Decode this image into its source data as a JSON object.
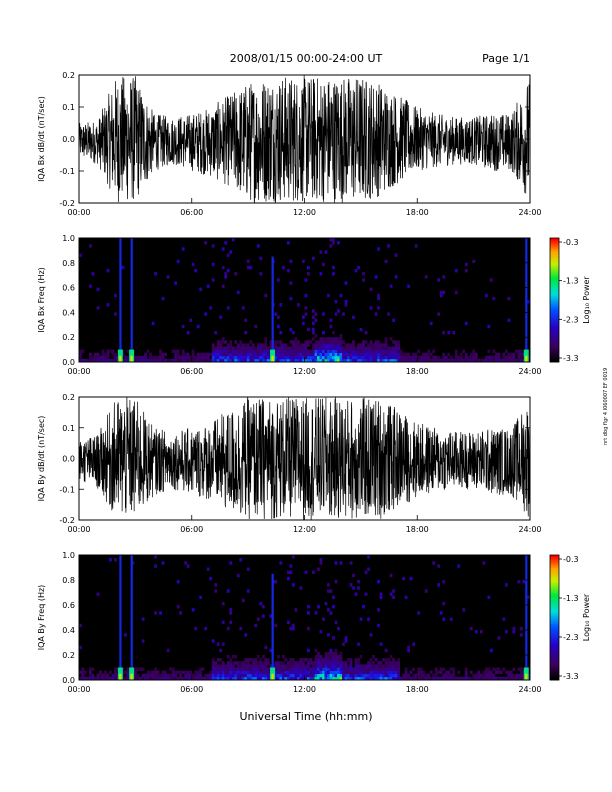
{
  "header": {
    "title": "2008/01/15  00:00-24:00 UT",
    "page": "Page 1/1"
  },
  "footer": {
    "xlabel": "Universal Time (hh:mm)"
  },
  "side_note": "nrt dbg flgr 4 I060007 EF 0019",
  "chart_data": [
    {
      "type": "line",
      "ylabel": "IQA Bx dB/dt (nT/sec)",
      "ylim": [
        -0.2,
        0.2
      ],
      "yticks": [
        "-0.2",
        "-0.1",
        "0.0",
        "0.1",
        "0.2"
      ],
      "xticks": [
        "00:00",
        "06:00",
        "12:00",
        "18:00",
        "24:00"
      ],
      "xlim": [
        0,
        24
      ],
      "envelope": {
        "x": [
          0,
          1,
          2,
          2.5,
          3,
          4,
          5,
          6,
          7,
          8,
          9,
          10,
          11,
          12,
          13,
          14,
          15,
          16,
          17,
          18,
          19,
          20,
          21,
          22,
          23,
          24
        ],
        "upper": [
          0.05,
          0.06,
          0.2,
          0.2,
          0.2,
          0.08,
          0.07,
          0.08,
          0.1,
          0.14,
          0.18,
          0.2,
          0.2,
          0.2,
          0.2,
          0.2,
          0.2,
          0.18,
          0.14,
          0.1,
          0.08,
          0.07,
          0.07,
          0.08,
          0.08,
          0.2
        ],
        "lower": [
          -0.06,
          -0.08,
          -0.2,
          -0.2,
          -0.2,
          -0.1,
          -0.08,
          -0.1,
          -0.12,
          -0.15,
          -0.2,
          -0.2,
          -0.2,
          -0.2,
          -0.2,
          -0.2,
          -0.2,
          -0.18,
          -0.14,
          -0.1,
          -0.09,
          -0.08,
          -0.08,
          -0.1,
          -0.1,
          -0.2
        ]
      }
    },
    {
      "type": "heatmap",
      "ylabel": "IQA Bx Freq (Hz)",
      "ylim": [
        0.0,
        1.0
      ],
      "yticks": [
        "0.0",
        "0.2",
        "0.4",
        "0.6",
        "0.8",
        "1.0"
      ],
      "xticks": [
        "00:00",
        "06:00",
        "12:00",
        "18:00",
        "24:00"
      ],
      "xlim": [
        0,
        24
      ],
      "colorbar": {
        "label": "Log₁₀ Power",
        "ticks": [
          "-0.3",
          "-1.3",
          "-2.3",
          "-3.3"
        ],
        "range": [
          -3.3,
          -0.3
        ]
      },
      "features": [
        {
          "kind": "spike",
          "x": 2.2,
          "fmax": 1.0
        },
        {
          "kind": "spike",
          "x": 2.8,
          "fmax": 1.0
        },
        {
          "kind": "spike",
          "x": 10.3,
          "fmax": 0.85
        },
        {
          "kind": "spike",
          "x": 23.8,
          "fmax": 1.0
        }
      ]
    },
    {
      "type": "line",
      "ylabel": "IQA By dB/dt (nT/sec)",
      "ylim": [
        -0.2,
        0.2
      ],
      "yticks": [
        "-0.2",
        "-0.1",
        "0.0",
        "0.1",
        "0.2"
      ],
      "xticks": [
        "00:00",
        "06:00",
        "12:00",
        "18:00",
        "24:00"
      ],
      "xlim": [
        0,
        24
      ],
      "envelope": {
        "x": [
          0,
          1,
          2,
          2.5,
          3,
          4,
          5,
          6,
          7,
          8,
          9,
          10,
          11,
          12,
          13,
          14,
          15,
          16,
          17,
          18,
          19,
          20,
          21,
          22,
          23,
          24
        ],
        "upper": [
          0.06,
          0.08,
          0.2,
          0.2,
          0.2,
          0.1,
          0.09,
          0.1,
          0.12,
          0.16,
          0.2,
          0.2,
          0.2,
          0.2,
          0.2,
          0.2,
          0.2,
          0.2,
          0.16,
          0.12,
          0.1,
          0.09,
          0.09,
          0.1,
          0.1,
          0.2
        ],
        "lower": [
          -0.07,
          -0.1,
          -0.2,
          -0.2,
          -0.2,
          -0.12,
          -0.1,
          -0.12,
          -0.14,
          -0.18,
          -0.2,
          -0.2,
          -0.2,
          -0.2,
          -0.2,
          -0.2,
          -0.2,
          -0.2,
          -0.16,
          -0.13,
          -0.11,
          -0.1,
          -0.1,
          -0.12,
          -0.12,
          -0.2
        ]
      }
    },
    {
      "type": "heatmap",
      "ylabel": "IQA By Freq (Hz)",
      "ylim": [
        0.0,
        1.0
      ],
      "yticks": [
        "0.0",
        "0.2",
        "0.4",
        "0.6",
        "0.8",
        "1.0"
      ],
      "xticks": [
        "00:00",
        "06:00",
        "12:00",
        "18:00",
        "24:00"
      ],
      "xlim": [
        0,
        24
      ],
      "colorbar": {
        "label": "Log₁₀ Power",
        "ticks": [
          "-0.3",
          "-1.3",
          "-2.3",
          "-3.3"
        ],
        "range": [
          -3.3,
          -0.3
        ]
      },
      "features": [
        {
          "kind": "spike",
          "x": 2.2,
          "fmax": 1.0
        },
        {
          "kind": "spike",
          "x": 2.8,
          "fmax": 1.0
        },
        {
          "kind": "spike",
          "x": 10.3,
          "fmax": 0.85
        },
        {
          "kind": "spike",
          "x": 23.8,
          "fmax": 1.0
        }
      ]
    }
  ]
}
